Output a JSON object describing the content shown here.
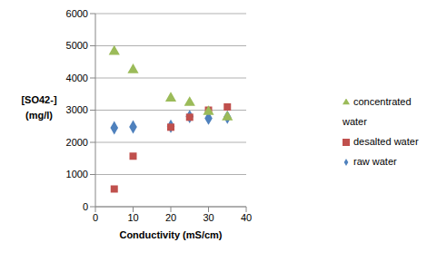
{
  "chart_data": {
    "type": "scatter",
    "x_label": "Conductivity (mS/cm)",
    "y_label": "[SO42-]\n(mg/l)",
    "xlim": [
      0,
      40
    ],
    "xticks": [
      0,
      10,
      20,
      30,
      40
    ],
    "ylim": [
      0,
      6000
    ],
    "yticks": [
      0,
      1000,
      2000,
      3000,
      4000,
      5000,
      6000
    ],
    "grid": true,
    "legend": "right",
    "series": [
      {
        "name": "raw water",
        "color": "#4F81BD",
        "marker": "diamond",
        "x": [
          5,
          10,
          20,
          25,
          30,
          35
        ],
        "values": [
          2450,
          2480,
          2500,
          2800,
          2750,
          2780
        ]
      },
      {
        "name": "desalted water",
        "color": "#C0504D",
        "marker": "square",
        "x": [
          5,
          10,
          20,
          25,
          30,
          35
        ],
        "values": [
          550,
          1570,
          2470,
          2780,
          3000,
          3100
        ]
      },
      {
        "name": "concentrated water",
        "color": "#9BBB59",
        "marker": "triangle",
        "x": [
          5,
          10,
          20,
          25,
          30,
          35
        ],
        "values": [
          4820,
          4250,
          3370,
          3230,
          2950,
          2780
        ]
      }
    ]
  }
}
